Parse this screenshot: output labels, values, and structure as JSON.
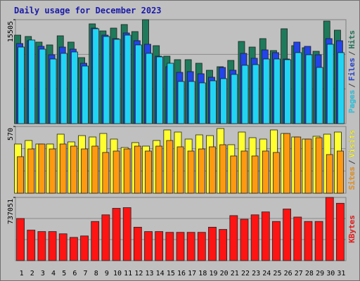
{
  "title": "Daily usage for December 2023",
  "legend_separator": "/",
  "chart_data": [
    {
      "type": "bar",
      "ylim": [
        0,
        15505
      ],
      "yticks": [
        15505
      ],
      "series": [
        {
          "name": "Pages",
          "color": "#22d4f4",
          "values": [
            11420,
            12470,
            11110,
            9640,
            10480,
            10690,
            8590,
            14150,
            13000,
            12580,
            13200,
            11740,
            10480,
            9960,
            9010,
            6290,
            6290,
            6080,
            6390,
            6710,
            7340,
            8700,
            8800,
            9640,
            9640,
            9540,
            10590,
            10270,
            8380,
            11840,
            10590
          ]
        },
        {
          "name": "Files",
          "color": "#2244e8",
          "values": [
            11950,
            12370,
            11530,
            10270,
            11420,
            11110,
            9010,
            14250,
            13200,
            12680,
            13520,
            12370,
            11840,
            10060,
            8490,
            7650,
            7760,
            7440,
            6920,
            8380,
            7970,
            10480,
            9750,
            11000,
            10590,
            9640,
            12160,
            11530,
            10270,
            12680,
            12370
          ]
        },
        {
          "name": "Hits",
          "color": "#1e7a5a",
          "values": [
            13200,
            13000,
            12160,
            11740,
            13100,
            12160,
            9850,
            14880,
            13830,
            14250,
            14780,
            13730,
            15505,
            11630,
            10060,
            9540,
            9540,
            9010,
            7960,
            8490,
            9430,
            12260,
            11420,
            12680,
            10900,
            14150,
            11630,
            11320,
            10790,
            15300,
            13940
          ]
        }
      ]
    },
    {
      "type": "bar",
      "ylim": [
        0,
        570
      ],
      "yticks": [
        570
      ],
      "series": [
        {
          "name": "Sites",
          "color": "#ff9a10",
          "values": [
            312,
            378,
            420,
            378,
            420,
            402,
            378,
            402,
            348,
            360,
            378,
            402,
            360,
            402,
            450,
            396,
            360,
            378,
            396,
            414,
            318,
            360,
            318,
            360,
            348,
            510,
            480,
            462,
            474,
            330,
            360
          ]
        },
        {
          "name": "Visits",
          "color": "#ffff30",
          "values": [
            420,
            450,
            420,
            420,
            504,
            438,
            492,
            480,
            510,
            462,
            390,
            432,
            402,
            450,
            540,
            522,
            462,
            498,
            492,
            552,
            414,
            522,
            474,
            462,
            540,
            510,
            480,
            462,
            486,
            504,
            522
          ]
        }
      ]
    },
    {
      "type": "bar",
      "ylim": [
        0,
        737051
      ],
      "yticks": [
        737051
      ],
      "series": [
        {
          "name": "KBytes",
          "color": "#ff1414",
          "values": [
            491000,
            356000,
            339000,
            339000,
            313000,
            271000,
            288000,
            457000,
            534000,
            610000,
            618000,
            390000,
            339000,
            339000,
            330000,
            330000,
            330000,
            330000,
            390000,
            364000,
            525000,
            483000,
            534000,
            568000,
            457000,
            602000,
            508000,
            457000,
            457000,
            737051,
            669000
          ]
        }
      ],
      "categories": [
        "1",
        "2",
        "3",
        "4",
        "5",
        "6",
        "7",
        "8",
        "9",
        "10",
        "11",
        "12",
        "13",
        "14",
        "15",
        "16",
        "17",
        "18",
        "19",
        "20",
        "21",
        "22",
        "23",
        "24",
        "25",
        "26",
        "27",
        "28",
        "29",
        "30",
        "31"
      ],
      "category_colors": [
        "#000000",
        "#1e8a5a",
        "#1e8a5a",
        "#000000",
        "#000000",
        "#000000",
        "#000000",
        "#000000",
        "#1e8a5a",
        "#1e8a5a",
        "#000000",
        "#000000",
        "#000000",
        "#000000",
        "#000000",
        "#1e8a5a",
        "#1e8a5a",
        "#000000",
        "#000000",
        "#000000",
        "#000000",
        "#000000",
        "#1e8a5a",
        "#1e8a5a",
        "#000000",
        "#000000",
        "#000000",
        "#000000",
        "#000000",
        "#1e8a5a",
        "#1e8a5a"
      ]
    }
  ]
}
